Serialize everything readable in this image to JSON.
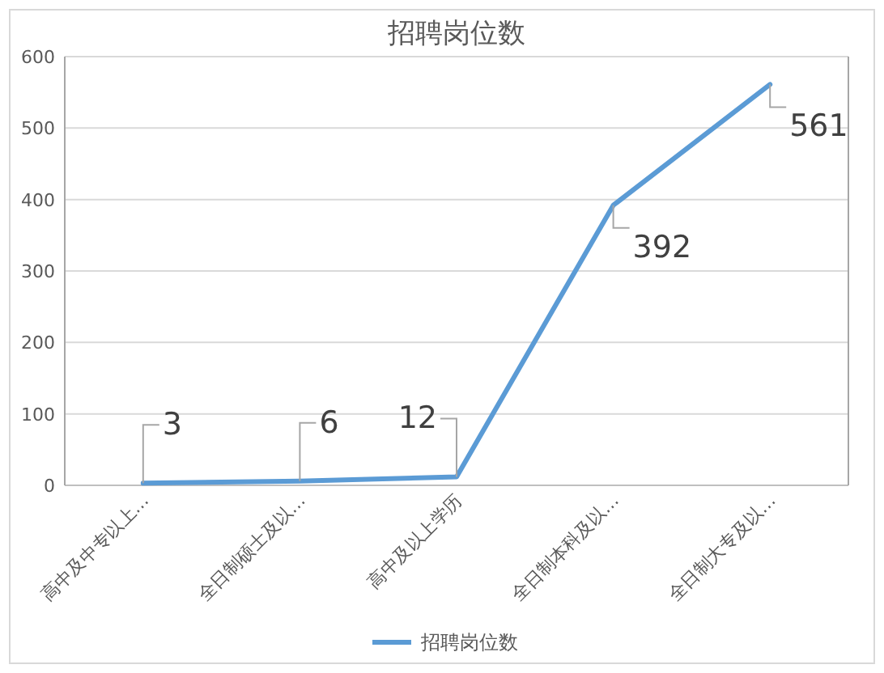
{
  "chart_data": {
    "type": "line",
    "title": "招聘岗位数",
    "categories": [
      "高中及中专以上…",
      "全日制硕士及以…",
      "高中及以上学历",
      "全日制本科及以…",
      "全日制大专及以…"
    ],
    "series": [
      {
        "name": "招聘岗位数",
        "color": "#5b9bd5",
        "values": [
          3,
          6,
          12,
          392,
          561
        ]
      }
    ],
    "ylim": [
      0,
      600
    ],
    "yticks": [
      0,
      100,
      200,
      300,
      400,
      500,
      600
    ],
    "grid": "y",
    "legend": "bottom",
    "data_labels": true,
    "marker": "none",
    "line_style": "solid"
  }
}
